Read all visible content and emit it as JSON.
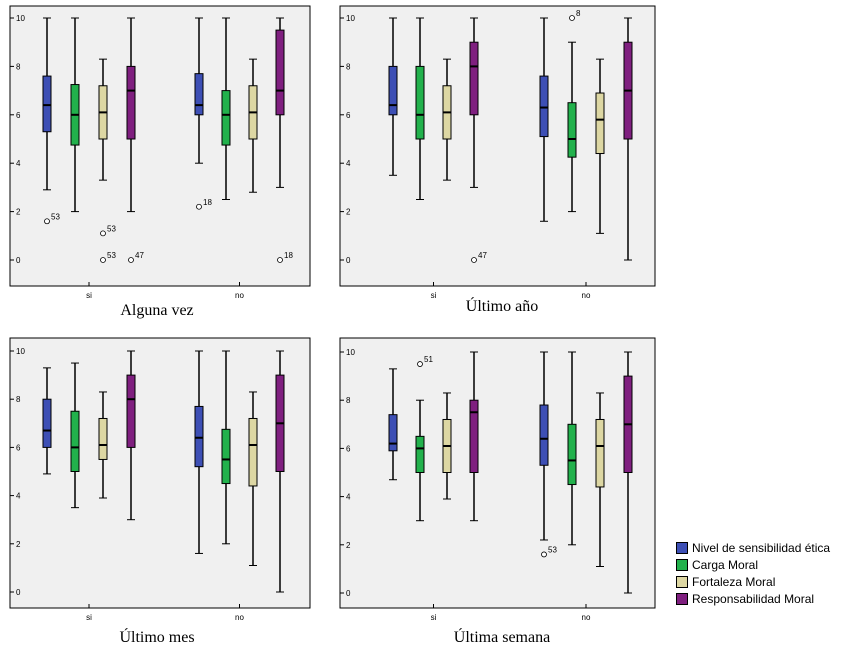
{
  "legend": {
    "items": [
      {
        "label": "Nivel de sensibilidad ética",
        "color": "#3d4fb5"
      },
      {
        "label": "Carga Moral",
        "color": "#22b14c"
      },
      {
        "label": "Fortaleza Moral",
        "color": "#ddd7a3"
      },
      {
        "label": "Responsabilidad Moral",
        "color": "#7f1f7f"
      }
    ]
  },
  "chart_data": [
    {
      "type": "boxplot",
      "title": "Alguna vez",
      "categories": [
        "si",
        "no"
      ],
      "ylim": [
        0,
        10
      ],
      "yticks": [
        "0",
        "2",
        "4",
        "6",
        "8",
        "10"
      ],
      "series": [
        {
          "name": "Nivel de sensibilidad ética",
          "boxes": [
            {
              "min": 2.9,
              "q1": 5.3,
              "median": 6.4,
              "q3": 7.6,
              "max": 10,
              "outliers": [
                {
                  "value": 1.6,
                  "label": "53"
                }
              ]
            },
            {
              "min": 4.0,
              "q1": 6.0,
              "median": 6.4,
              "q3": 7.7,
              "max": 10,
              "outliers": [
                {
                  "value": 2.2,
                  "label": "18"
                }
              ]
            }
          ]
        },
        {
          "name": "Carga Moral",
          "boxes": [
            {
              "min": 2.0,
              "q1": 4.75,
              "median": 6.0,
              "q3": 7.25,
              "max": 10,
              "outliers": []
            },
            {
              "min": 2.5,
              "q1": 4.75,
              "median": 6.0,
              "q3": 7.0,
              "max": 10,
              "outliers": []
            }
          ]
        },
        {
          "name": "Fortaleza Moral",
          "boxes": [
            {
              "min": 3.3,
              "q1": 5.0,
              "median": 6.1,
              "q3": 7.2,
              "max": 8.3,
              "outliers": [
                {
                  "value": 1.1,
                  "label": "53"
                },
                {
                  "value": 0.0,
                  "label": "53"
                }
              ]
            },
            {
              "min": 2.8,
              "q1": 5.0,
              "median": 6.1,
              "q3": 7.2,
              "max": 8.3,
              "outliers": []
            }
          ]
        },
        {
          "name": "Responsabilidad Moral",
          "boxes": [
            {
              "min": 2.0,
              "q1": 5.0,
              "median": 7.0,
              "q3": 8.0,
              "max": 10,
              "outliers": [
                {
                  "value": 0.0,
                  "label": "47"
                }
              ]
            },
            {
              "min": 3.0,
              "q1": 6.0,
              "median": 7.0,
              "q3": 9.5,
              "max": 10,
              "outliers": [
                {
                  "value": 0.0,
                  "label": "18"
                }
              ]
            }
          ]
        }
      ]
    },
    {
      "type": "boxplot",
      "title": "Último año",
      "categories": [
        "si",
        "no"
      ],
      "ylim": [
        0,
        10
      ],
      "yticks": [
        "0",
        "2",
        "4",
        "6",
        "8",
        "10"
      ],
      "series": [
        {
          "name": "Nivel de sensibilidad ética",
          "boxes": [
            {
              "min": 3.5,
              "q1": 6.0,
              "median": 6.4,
              "q3": 8.0,
              "max": 10,
              "outliers": []
            },
            {
              "min": 1.6,
              "q1": 5.1,
              "median": 6.3,
              "q3": 7.6,
              "max": 10,
              "outliers": []
            }
          ]
        },
        {
          "name": "Carga Moral",
          "boxes": [
            {
              "min": 2.5,
              "q1": 5.0,
              "median": 6.0,
              "q3": 8.0,
              "max": 10,
              "outliers": []
            },
            {
              "min": 2.0,
              "q1": 4.25,
              "median": 5.0,
              "q3": 6.5,
              "max": 9.0,
              "outliers": [
                {
                  "value": 10,
                  "label": "8"
                }
              ]
            }
          ]
        },
        {
          "name": "Fortaleza Moral",
          "boxes": [
            {
              "min": 3.3,
              "q1": 5.0,
              "median": 6.1,
              "q3": 7.2,
              "max": 8.3,
              "outliers": []
            },
            {
              "min": 1.1,
              "q1": 4.4,
              "median": 5.8,
              "q3": 6.9,
              "max": 8.3,
              "outliers": []
            }
          ]
        },
        {
          "name": "Responsabilidad Moral",
          "boxes": [
            {
              "min": 3.0,
              "q1": 6.0,
              "median": 8.0,
              "q3": 9.0,
              "max": 10,
              "outliers": [
                {
                  "value": 0.0,
                  "label": "47"
                }
              ]
            },
            {
              "min": 0.0,
              "q1": 5.0,
              "median": 7.0,
              "q3": 9.0,
              "max": 10,
              "outliers": []
            }
          ]
        }
      ]
    },
    {
      "type": "boxplot",
      "title": "Último mes",
      "categories": [
        "si",
        "no"
      ],
      "ylim": [
        0,
        10
      ],
      "yticks": [
        "0",
        "2",
        "4",
        "6",
        "8",
        "10"
      ],
      "series": [
        {
          "name": "Nivel de sensibilidad ética",
          "boxes": [
            {
              "min": 4.9,
              "q1": 6.0,
              "median": 6.7,
              "q3": 8.0,
              "max": 9.3,
              "outliers": []
            },
            {
              "min": 1.6,
              "q1": 5.2,
              "median": 6.4,
              "q3": 7.7,
              "max": 10,
              "outliers": []
            }
          ]
        },
        {
          "name": "Carga Moral",
          "boxes": [
            {
              "min": 3.5,
              "q1": 5.0,
              "median": 6.0,
              "q3": 7.5,
              "max": 9.5,
              "outliers": []
            },
            {
              "min": 2.0,
              "q1": 4.5,
              "median": 5.5,
              "q3": 6.75,
              "max": 10,
              "outliers": []
            }
          ]
        },
        {
          "name": "Fortaleza Moral",
          "boxes": [
            {
              "min": 3.9,
              "q1": 5.5,
              "median": 6.1,
              "q3": 7.2,
              "max": 8.3,
              "outliers": []
            },
            {
              "min": 1.1,
              "q1": 4.4,
              "median": 6.1,
              "q3": 7.2,
              "max": 8.3,
              "outliers": []
            }
          ]
        },
        {
          "name": "Responsabilidad Moral",
          "boxes": [
            {
              "min": 3.0,
              "q1": 6.0,
              "median": 8.0,
              "q3": 9.0,
              "max": 10,
              "outliers": []
            },
            {
              "min": 0.0,
              "q1": 5.0,
              "median": 7.0,
              "q3": 9.0,
              "max": 10,
              "outliers": []
            }
          ]
        }
      ]
    },
    {
      "type": "boxplot",
      "title": "Última semana",
      "categories": [
        "si",
        "no"
      ],
      "ylim": [
        0,
        10
      ],
      "yticks": [
        "0",
        "2",
        "4",
        "6",
        "8",
        "10"
      ],
      "series": [
        {
          "name": "Nivel de sensibilidad ética",
          "boxes": [
            {
              "min": 4.7,
              "q1": 5.9,
              "median": 6.2,
              "q3": 7.4,
              "max": 9.3,
              "outliers": []
            },
            {
              "min": 2.2,
              "q1": 5.3,
              "median": 6.4,
              "q3": 7.8,
              "max": 10,
              "outliers": [
                {
                  "value": 1.6,
                  "label": "53"
                }
              ]
            }
          ]
        },
        {
          "name": "Carga Moral",
          "boxes": [
            {
              "min": 3.0,
              "q1": 5.0,
              "median": 6.0,
              "q3": 6.5,
              "max": 8.0,
              "outliers": [
                {
                  "value": 9.5,
                  "label": "51"
                }
              ]
            },
            {
              "min": 2.0,
              "q1": 4.5,
              "median": 5.5,
              "q3": 7.0,
              "max": 10,
              "outliers": []
            }
          ]
        },
        {
          "name": "Fortaleza Moral",
          "boxes": [
            {
              "min": 3.9,
              "q1": 5.0,
              "median": 6.1,
              "q3": 7.2,
              "max": 8.3,
              "outliers": []
            },
            {
              "min": 1.1,
              "q1": 4.4,
              "median": 6.1,
              "q3": 7.2,
              "max": 8.3,
              "outliers": []
            }
          ]
        },
        {
          "name": "Responsabilidad Moral",
          "boxes": [
            {
              "min": 3.0,
              "q1": 5.0,
              "median": 7.5,
              "q3": 8.0,
              "max": 10,
              "outliers": []
            },
            {
              "min": 0.0,
              "q1": 5.0,
              "median": 7.0,
              "q3": 9.0,
              "max": 10,
              "outliers": []
            }
          ]
        }
      ]
    }
  ]
}
